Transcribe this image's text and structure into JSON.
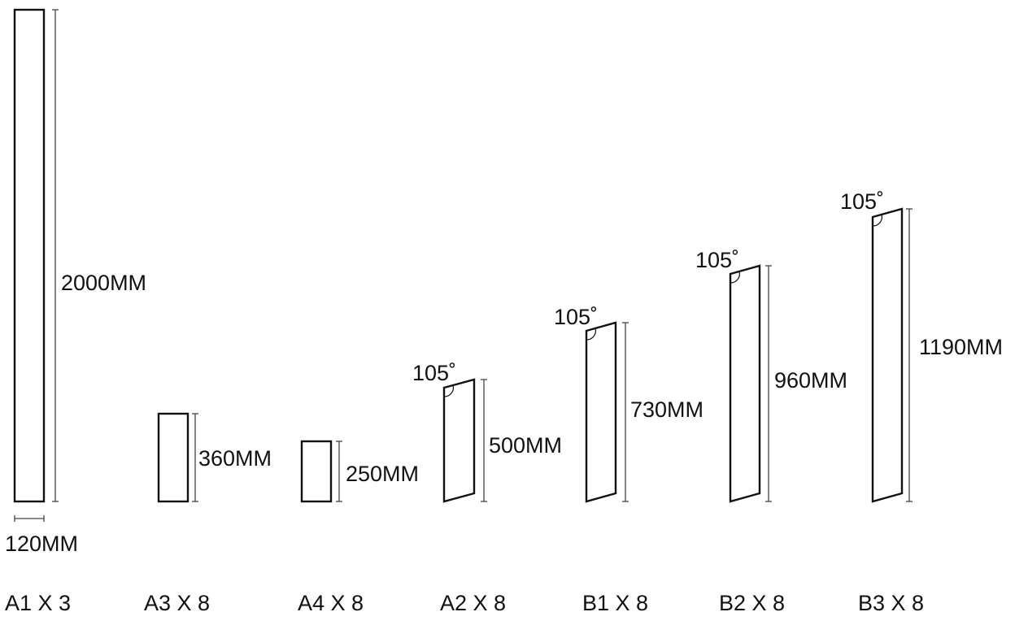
{
  "panels": [
    {
      "id": "a1",
      "name": "A1 X 3",
      "height_label": "2000MM",
      "width_label": "120MM",
      "angle_label": ""
    },
    {
      "id": "a3",
      "name": "A3 X 8",
      "height_label": "360MM",
      "width_label": "",
      "angle_label": ""
    },
    {
      "id": "a4",
      "name": "A4 X 8",
      "height_label": "250MM",
      "width_label": "",
      "angle_label": ""
    },
    {
      "id": "a2",
      "name": "A2 X 8",
      "height_label": "500MM",
      "width_label": "",
      "angle_label": "105˚"
    },
    {
      "id": "b1",
      "name": "B1 X 8",
      "height_label": "730MM",
      "width_label": "",
      "angle_label": "105˚"
    },
    {
      "id": "b2",
      "name": "B2 X 8",
      "height_label": "960MM",
      "width_label": "",
      "angle_label": "105˚"
    },
    {
      "id": "b3",
      "name": "B3 X 8",
      "height_label": "1190MM",
      "width_label": "",
      "angle_label": "105˚"
    }
  ],
  "colors": {
    "stroke": "#111111",
    "dim_line": "#444444",
    "background": "#ffffff"
  }
}
